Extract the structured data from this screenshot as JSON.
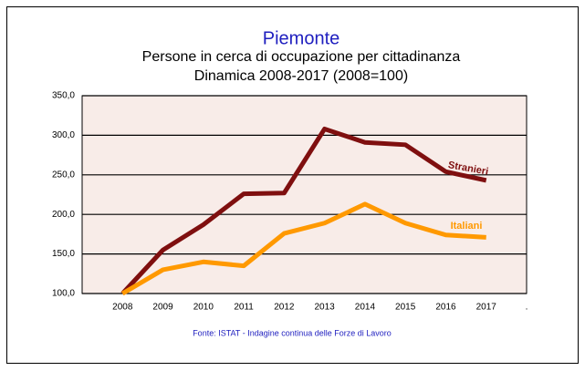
{
  "chart_data": {
    "type": "line",
    "title": "Piemonte",
    "subtitle": [
      "Persone in cerca di occupazione per cittadinanza",
      "Dinamica 2008-2017 (2008=100)"
    ],
    "categories": [
      "2008",
      "2009",
      "2010",
      "2011",
      "2012",
      "2013",
      "2014",
      "2015",
      "2016",
      "2017",
      "."
    ],
    "series": [
      {
        "name": "Stranieri",
        "color": "#7f0f0f",
        "values": [
          100,
          155,
          187,
          226,
          227,
          308,
          291,
          288,
          254,
          243,
          null
        ]
      },
      {
        "name": "Italiani",
        "color": "#ff9900",
        "values": [
          100,
          130,
          140,
          135,
          176,
          189,
          213,
          189,
          174,
          171,
          null
        ]
      }
    ],
    "ylim": [
      100,
      350
    ],
    "yticks": [
      {
        "value": 100,
        "label": "100,0"
      },
      {
        "value": 150,
        "label": "150,0"
      },
      {
        "value": 200,
        "label": "200,0"
      },
      {
        "value": 250,
        "label": "250,0"
      },
      {
        "value": 300,
        "label": "300,0"
      },
      {
        "value": 350,
        "label": "350,0"
      }
    ],
    "grid": true,
    "source": "Fonte: ISTAT - Indagine continua delle Forze di Lavoro"
  }
}
